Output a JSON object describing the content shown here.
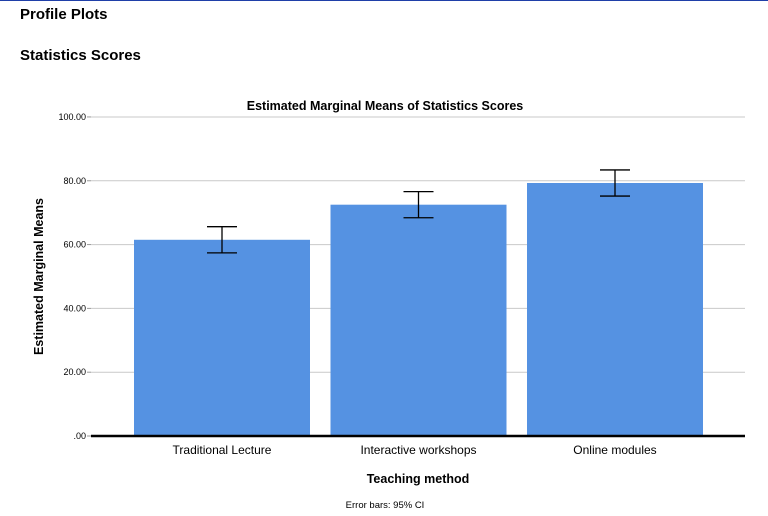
{
  "page": {
    "heading": "Profile Plots",
    "subheading": "Statistics Scores"
  },
  "colors": {
    "bar": "#5592e2",
    "grid": "#c9c9c9",
    "axis": "#000000",
    "error_bar": "#000000",
    "top_rule": "#1f3fa8"
  },
  "chart_data": {
    "type": "bar",
    "title": "Estimated Marginal Means of Statistics Scores",
    "xlabel": "Teaching method",
    "ylabel": "Estimated Marginal Means",
    "categories": [
      "Traditional Lecture",
      "Interactive workshops",
      "Online modules"
    ],
    "values": [
      61.5,
      72.5,
      79.3
    ],
    "error_bars": {
      "lower": [
        57.4,
        68.4,
        75.2
      ],
      "upper": [
        65.6,
        76.6,
        83.4
      ]
    },
    "ylim": [
      0,
      105
    ],
    "yticks": [
      0,
      20,
      40,
      60,
      80,
      100
    ],
    "ytick_labels": [
      ".00",
      "20.00",
      "40.00",
      "60.00",
      "80.00",
      "100.00"
    ],
    "grid": true,
    "footnote": "Error bars: 95% CI"
  }
}
